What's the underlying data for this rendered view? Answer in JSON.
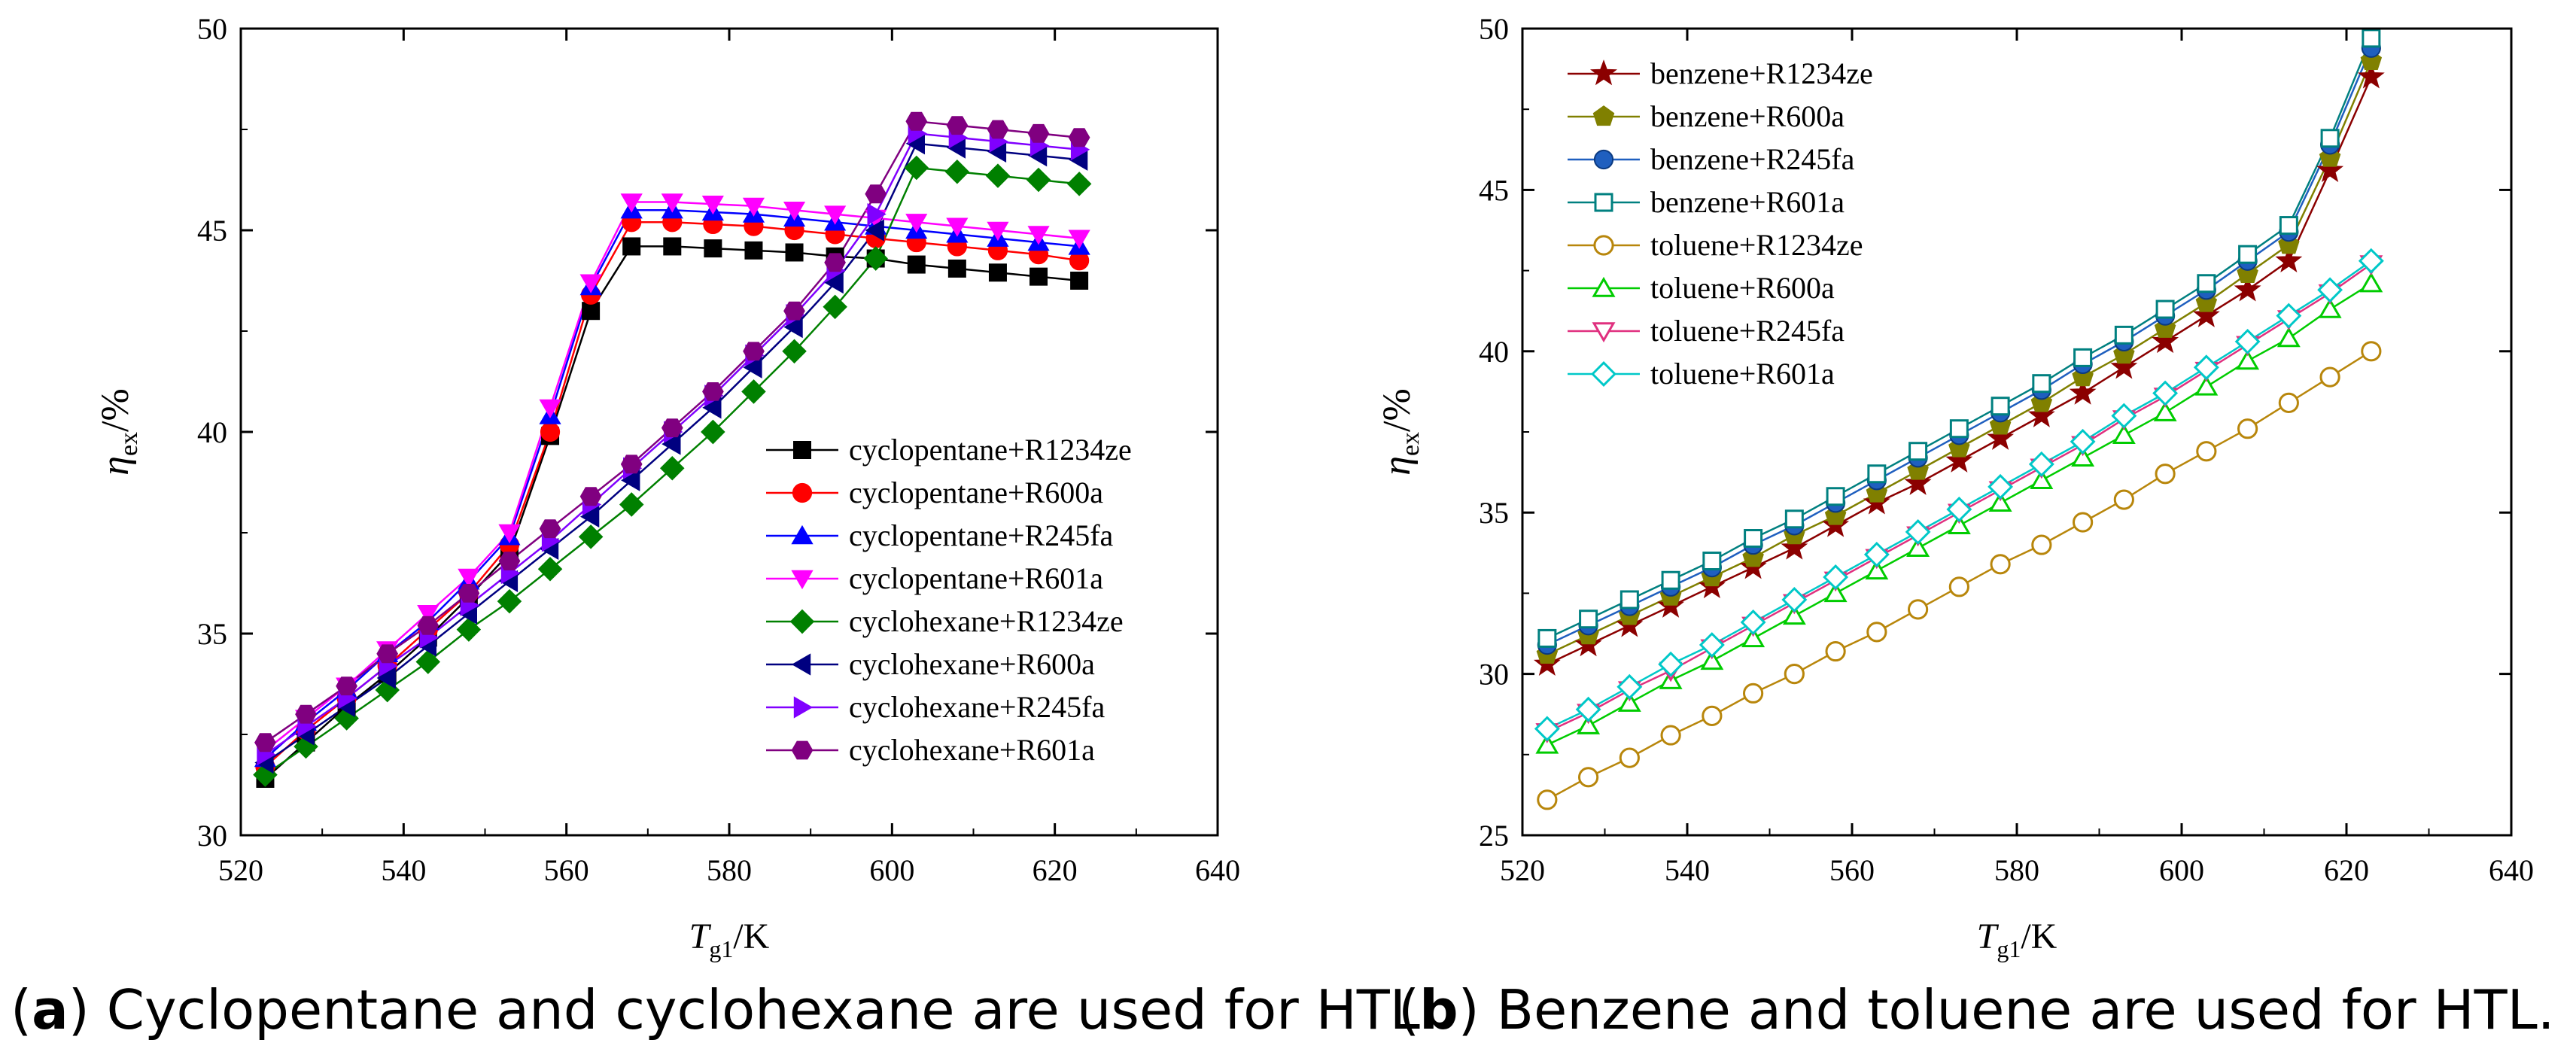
{
  "chart_data": [
    {
      "type": "line",
      "panel": "a",
      "caption_letter": "a",
      "caption_text": "Cyclopentane and cyclohexane are used for HTL.",
      "ylabel_sym": "η",
      "ylabel_sub": "ex",
      "ylabel_unit": "/%",
      "xlabel_sym": "T",
      "xlabel_sub": "g1",
      "xlabel_unit": "/K",
      "xlim": [
        520,
        640
      ],
      "ylim": [
        30,
        50
      ],
      "xticks": [
        520,
        540,
        560,
        580,
        600,
        620,
        640
      ],
      "yticks": [
        30,
        35,
        40,
        45,
        50
      ],
      "xtick_labels": [
        "520",
        "540",
        "560",
        "580",
        "600",
        "620",
        "640"
      ],
      "ytick_labels": [
        "30",
        "35",
        "40",
        "45",
        "50"
      ],
      "legend_position": "center-right",
      "x": [
        523,
        528,
        533,
        538,
        543,
        548,
        553,
        558,
        563,
        568,
        573,
        578,
        583,
        588,
        593,
        598,
        603,
        608,
        613,
        618,
        623
      ],
      "series": [
        {
          "name": "cyclopentane+R1234ze",
          "color": "#000000",
          "marker": "square",
          "values": [
            31.4,
            32.3,
            33.2,
            34.0,
            34.9,
            35.9,
            37.0,
            39.9,
            43.0,
            44.6,
            44.6,
            44.55,
            44.5,
            44.45,
            44.35,
            44.3,
            44.15,
            44.05,
            43.95,
            43.85,
            43.75
          ]
        },
        {
          "name": "cyclopentane+R600a",
          "color": "#ff0000",
          "marker": "circle",
          "values": [
            31.7,
            32.6,
            33.4,
            34.2,
            35.1,
            36.0,
            37.2,
            40.0,
            43.4,
            45.2,
            45.2,
            45.15,
            45.1,
            45.0,
            44.9,
            44.8,
            44.7,
            44.6,
            44.5,
            44.4,
            44.25
          ]
        },
        {
          "name": "cyclopentane+R245fa",
          "color": "#0000ff",
          "marker": "triangle-up",
          "values": [
            31.9,
            32.8,
            33.6,
            34.5,
            35.3,
            36.3,
            37.4,
            40.4,
            43.6,
            45.5,
            45.5,
            45.45,
            45.4,
            45.3,
            45.2,
            45.1,
            45.0,
            44.9,
            44.8,
            44.7,
            44.6
          ]
        },
        {
          "name": "cyclopentane+R601a",
          "color": "#ff00ff",
          "marker": "triangle-down",
          "values": [
            32.1,
            32.9,
            33.7,
            34.6,
            35.5,
            36.4,
            37.5,
            40.6,
            43.7,
            45.7,
            45.7,
            45.65,
            45.6,
            45.5,
            45.4,
            45.3,
            45.2,
            45.1,
            45.0,
            44.9,
            44.8
          ]
        },
        {
          "name": "cyclohexane+R1234ze",
          "color": "#008000",
          "marker": "diamond",
          "values": [
            31.5,
            32.2,
            32.9,
            33.6,
            34.3,
            35.1,
            35.8,
            36.6,
            37.4,
            38.2,
            39.1,
            40.0,
            41.0,
            42.0,
            43.1,
            44.3,
            46.55,
            46.45,
            46.35,
            46.25,
            46.15
          ]
        },
        {
          "name": "cyclohexane+R600a",
          "color": "#000080",
          "marker": "triangle-left",
          "values": [
            31.8,
            32.5,
            33.2,
            33.9,
            34.7,
            35.5,
            36.3,
            37.1,
            37.9,
            38.8,
            39.7,
            40.6,
            41.6,
            42.6,
            43.7,
            45.0,
            47.15,
            47.05,
            46.95,
            46.85,
            46.75
          ]
        },
        {
          "name": "cyclohexane+R245fa",
          "color": "#8000ff",
          "marker": "triangle-right",
          "values": [
            32.0,
            32.7,
            33.4,
            34.2,
            34.9,
            35.7,
            36.5,
            37.3,
            38.2,
            39.1,
            40.0,
            40.9,
            41.9,
            42.9,
            44.0,
            45.4,
            47.4,
            47.3,
            47.2,
            47.1,
            47.0
          ]
        },
        {
          "name": "cyclohexane+R601a",
          "color": "#800080",
          "marker": "hexagon",
          "values": [
            32.3,
            33.0,
            33.7,
            34.5,
            35.2,
            36.0,
            36.8,
            37.6,
            38.4,
            39.2,
            40.1,
            41.0,
            42.0,
            43.0,
            44.2,
            45.9,
            47.7,
            47.6,
            47.5,
            47.4,
            47.3
          ]
        }
      ]
    },
    {
      "type": "line",
      "panel": "b",
      "caption_letter": "b",
      "caption_text": "Benzene and toluene are used for HTL.",
      "ylabel_sym": "η",
      "ylabel_sub": "ex",
      "ylabel_unit": "/%",
      "xlabel_sym": "T",
      "xlabel_sub": "g1",
      "xlabel_unit": "/K",
      "xlim": [
        520,
        640
      ],
      "ylim": [
        25,
        50
      ],
      "xticks": [
        520,
        540,
        560,
        580,
        600,
        620,
        640
      ],
      "yticks": [
        25,
        30,
        35,
        40,
        45,
        50
      ],
      "xtick_labels": [
        "520",
        "540",
        "560",
        "580",
        "600",
        "620",
        "640"
      ],
      "ytick_labels": [
        "25",
        "30",
        "35",
        "40",
        "45",
        "50"
      ],
      "legend_position": "top-left",
      "x": [
        523,
        528,
        533,
        538,
        543,
        548,
        553,
        558,
        563,
        568,
        573,
        578,
        583,
        588,
        593,
        598,
        603,
        608,
        613,
        618,
        623
      ],
      "series": [
        {
          "name": "benzene+R1234ze",
          "color": "#8b0000",
          "marker": "star",
          "values": [
            30.3,
            30.9,
            31.5,
            32.1,
            32.7,
            33.3,
            33.9,
            34.6,
            35.3,
            35.9,
            36.6,
            37.3,
            38.0,
            38.7,
            39.5,
            40.3,
            41.1,
            41.9,
            42.8,
            45.6,
            48.5
          ]
        },
        {
          "name": "benzene+R600a",
          "color": "#808000",
          "marker": "pentagon",
          "values": [
            30.6,
            31.2,
            31.8,
            32.4,
            33.0,
            33.6,
            34.3,
            34.9,
            35.6,
            36.3,
            37.0,
            37.7,
            38.4,
            39.2,
            39.9,
            40.7,
            41.5,
            42.4,
            43.3,
            46.0,
            49.0
          ]
        },
        {
          "name": "benzene+R245fa",
          "color": "#1f5fbf",
          "marker": "sphere",
          "values": [
            30.9,
            31.5,
            32.1,
            32.7,
            33.3,
            34.0,
            34.6,
            35.3,
            36.0,
            36.7,
            37.4,
            38.1,
            38.8,
            39.6,
            40.3,
            41.1,
            41.9,
            42.8,
            43.7,
            46.4,
            49.4
          ]
        },
        {
          "name": "benzene+R601a",
          "color": "#008080",
          "marker": "square-open",
          "values": [
            31.1,
            31.7,
            32.3,
            32.9,
            33.5,
            34.2,
            34.8,
            35.5,
            36.2,
            36.9,
            37.6,
            38.3,
            39.0,
            39.8,
            40.5,
            41.3,
            42.1,
            43.0,
            43.9,
            46.6,
            49.7
          ]
        },
        {
          "name": "toluene+R1234ze",
          "color": "#b8860b",
          "marker": "circle-open",
          "values": [
            26.1,
            26.8,
            27.4,
            28.1,
            28.7,
            29.4,
            30.0,
            30.7,
            31.3,
            32.0,
            32.7,
            33.4,
            34.0,
            34.7,
            35.4,
            36.2,
            36.9,
            37.6,
            38.4,
            39.2,
            40.0
          ]
        },
        {
          "name": "toluene+R600a",
          "color": "#00cc00",
          "marker": "triangle-open",
          "values": [
            27.8,
            28.4,
            29.1,
            29.8,
            30.4,
            31.1,
            31.8,
            32.5,
            33.2,
            33.9,
            34.6,
            35.3,
            36.0,
            36.7,
            37.4,
            38.1,
            38.9,
            39.7,
            40.4,
            41.3,
            42.1
          ]
        },
        {
          "name": "toluene+R245fa",
          "color": "#e0307f",
          "marker": "triangle-down-open",
          "values": [
            28.2,
            28.8,
            29.5,
            30.1,
            30.8,
            31.5,
            32.2,
            32.9,
            33.6,
            34.3,
            35.0,
            35.7,
            36.4,
            37.1,
            37.9,
            38.6,
            39.4,
            40.2,
            41.0,
            41.8,
            42.7
          ]
        },
        {
          "name": "toluene+R601a",
          "color": "#00c8c8",
          "marker": "diamond-open",
          "values": [
            28.3,
            28.9,
            29.6,
            30.3,
            30.9,
            31.6,
            32.3,
            33.0,
            33.7,
            34.4,
            35.1,
            35.8,
            36.5,
            37.2,
            38.0,
            38.7,
            39.5,
            40.3,
            41.1,
            41.9,
            42.8
          ]
        }
      ]
    }
  ]
}
